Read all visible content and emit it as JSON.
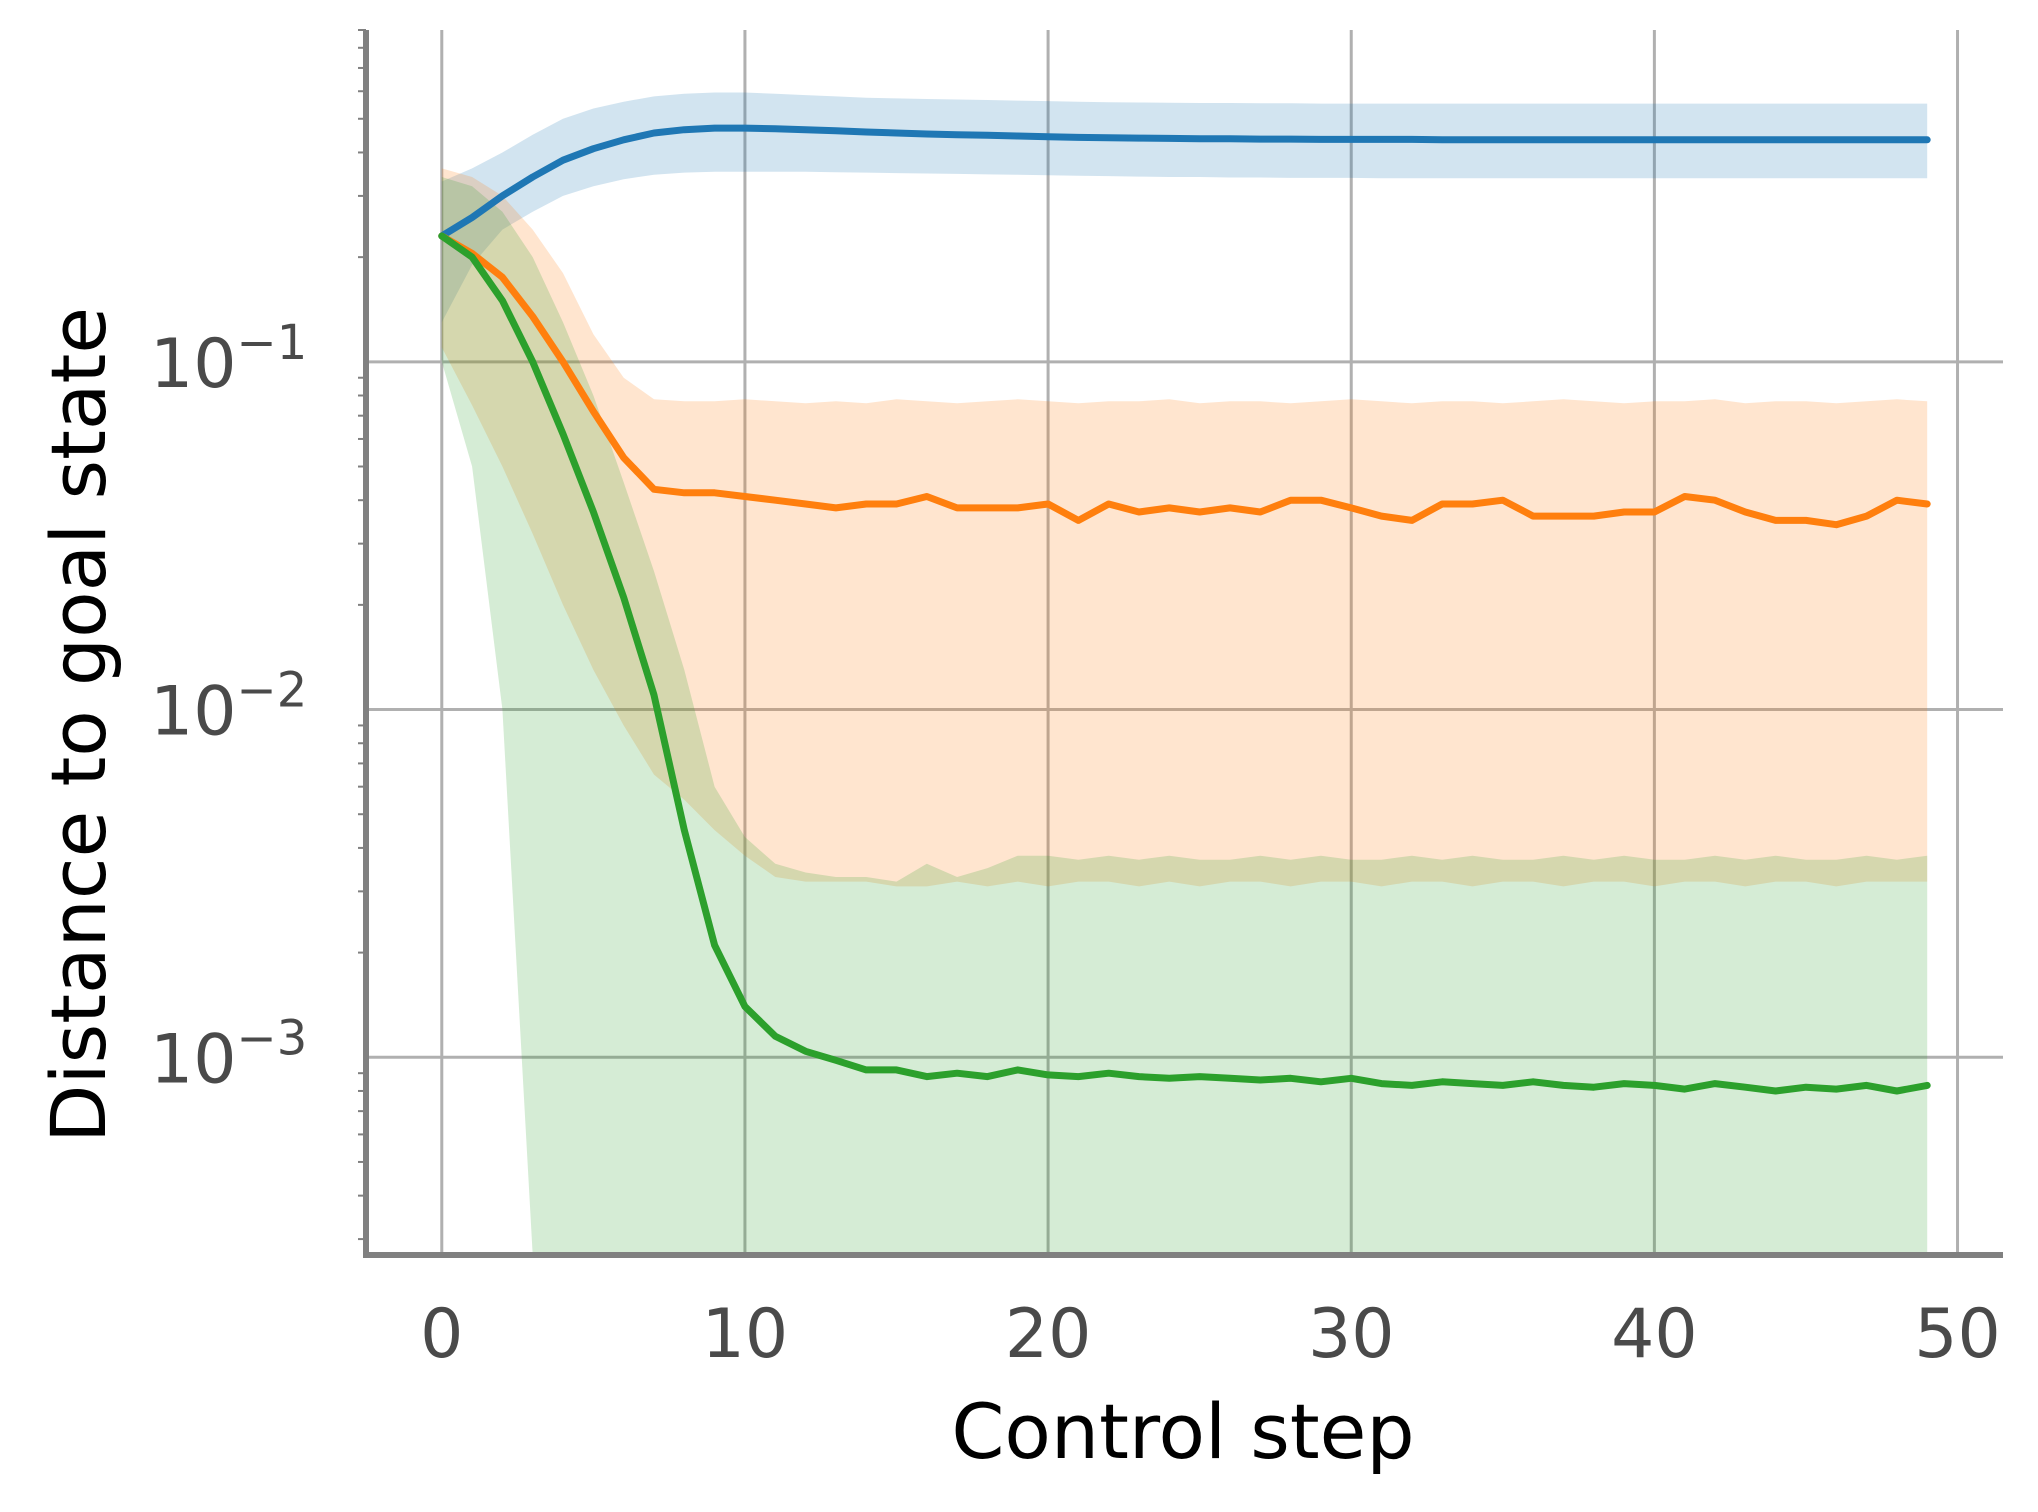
{
  "chart_data": {
    "type": "line",
    "title": "",
    "xlabel": "Control step",
    "ylabel": "Distance to goal state",
    "xlim": [
      -2.5,
      51.5
    ],
    "ylim": [
      0.00027,
      0.9
    ],
    "yscale": "log",
    "grid": true,
    "legend": "none",
    "x_ticks": [
      0,
      10,
      20,
      30,
      40,
      50
    ],
    "x_tick_labels": [
      "0",
      "10",
      "20",
      "30",
      "40",
      "50"
    ],
    "y_ticks": [
      0.1,
      0.01,
      0.001
    ],
    "y_tick_labels": [
      {
        "base": "10",
        "exp": "−1"
      },
      {
        "base": "10",
        "exp": "−2"
      },
      {
        "base": "10",
        "exp": "−3"
      }
    ],
    "colors": {
      "series1": "#1f77b4",
      "series2": "#ff7f0e",
      "series3": "#2ca02c",
      "grid": "#b0b0b0",
      "axis": "#808080"
    },
    "series": [
      {
        "key": "blue",
        "x": [
          0,
          1,
          2,
          3,
          4,
          5,
          6,
          7,
          8,
          9,
          10,
          11,
          12,
          13,
          14,
          15,
          16,
          17,
          18,
          19,
          20,
          21,
          22,
          23,
          24,
          25,
          26,
          27,
          28,
          29,
          30,
          31,
          32,
          33,
          34,
          35,
          36,
          37,
          38,
          39,
          40,
          41,
          42,
          43,
          44,
          45,
          46,
          47,
          48,
          49
        ],
        "values": [
          0.23,
          0.26,
          0.3,
          0.34,
          0.38,
          0.41,
          0.435,
          0.455,
          0.465,
          0.47,
          0.47,
          0.468,
          0.465,
          0.462,
          0.458,
          0.455,
          0.452,
          0.45,
          0.448,
          0.446,
          0.444,
          0.442,
          0.441,
          0.44,
          0.439,
          0.438,
          0.438,
          0.437,
          0.437,
          0.436,
          0.436,
          0.436,
          0.436,
          0.435,
          0.435,
          0.435,
          0.435,
          0.435,
          0.435,
          0.435,
          0.435,
          0.435,
          0.435,
          0.435,
          0.435,
          0.435,
          0.435,
          0.435,
          0.435,
          0.435
        ],
        "lower": [
          0.13,
          0.19,
          0.24,
          0.27,
          0.3,
          0.32,
          0.335,
          0.345,
          0.35,
          0.352,
          0.352,
          0.352,
          0.352,
          0.351,
          0.35,
          0.349,
          0.348,
          0.347,
          0.346,
          0.345,
          0.344,
          0.343,
          0.342,
          0.341,
          0.34,
          0.34,
          0.339,
          0.339,
          0.338,
          0.338,
          0.338,
          0.337,
          0.337,
          0.337,
          0.337,
          0.337,
          0.337,
          0.337,
          0.337,
          0.337,
          0.337,
          0.337,
          0.337,
          0.337,
          0.337,
          0.337,
          0.337,
          0.337,
          0.337,
          0.337
        ],
        "upper": [
          0.33,
          0.36,
          0.4,
          0.45,
          0.5,
          0.535,
          0.56,
          0.58,
          0.59,
          0.595,
          0.595,
          0.59,
          0.585,
          0.58,
          0.575,
          0.572,
          0.57,
          0.568,
          0.566,
          0.564,
          0.562,
          0.56,
          0.558,
          0.557,
          0.556,
          0.555,
          0.555,
          0.554,
          0.554,
          0.553,
          0.553,
          0.553,
          0.553,
          0.553,
          0.553,
          0.553,
          0.553,
          0.553,
          0.553,
          0.553,
          0.553,
          0.553,
          0.553,
          0.553,
          0.553,
          0.553,
          0.553,
          0.553,
          0.553,
          0.553
        ]
      },
      {
        "key": "orange",
        "x": [
          0,
          1,
          2,
          3,
          4,
          5,
          6,
          7,
          8,
          9,
          10,
          11,
          12,
          13,
          14,
          15,
          16,
          17,
          18,
          19,
          20,
          21,
          22,
          23,
          24,
          25,
          26,
          27,
          28,
          29,
          30,
          31,
          32,
          33,
          34,
          35,
          36,
          37,
          38,
          39,
          40,
          41,
          42,
          43,
          44,
          45,
          46,
          47,
          48,
          49
        ],
        "values": [
          0.23,
          0.205,
          0.175,
          0.135,
          0.1,
          0.072,
          0.053,
          0.043,
          0.042,
          0.042,
          0.041,
          0.04,
          0.039,
          0.038,
          0.039,
          0.039,
          0.041,
          0.038,
          0.038,
          0.038,
          0.039,
          0.035,
          0.039,
          0.037,
          0.038,
          0.037,
          0.038,
          0.037,
          0.04,
          0.04,
          0.038,
          0.036,
          0.035,
          0.039,
          0.039,
          0.04,
          0.036,
          0.036,
          0.036,
          0.037,
          0.037,
          0.041,
          0.04,
          0.037,
          0.035,
          0.035,
          0.034,
          0.036,
          0.04,
          0.039
        ],
        "lower": [
          0.11,
          0.075,
          0.05,
          0.032,
          0.02,
          0.013,
          0.009,
          0.0065,
          0.0055,
          0.0045,
          0.0038,
          0.0033,
          0.0032,
          0.0032,
          0.0032,
          0.0031,
          0.0031,
          0.0032,
          0.0031,
          0.0032,
          0.0031,
          0.0032,
          0.0032,
          0.0031,
          0.0032,
          0.0031,
          0.0032,
          0.0032,
          0.0031,
          0.0032,
          0.0032,
          0.0031,
          0.0032,
          0.0032,
          0.0031,
          0.0032,
          0.0032,
          0.0031,
          0.0032,
          0.0032,
          0.0031,
          0.0032,
          0.0032,
          0.0031,
          0.0032,
          0.0032,
          0.0031,
          0.0032,
          0.0032,
          0.0032
        ],
        "upper": [
          0.36,
          0.34,
          0.3,
          0.24,
          0.18,
          0.12,
          0.09,
          0.078,
          0.077,
          0.077,
          0.078,
          0.077,
          0.076,
          0.077,
          0.076,
          0.078,
          0.077,
          0.076,
          0.077,
          0.078,
          0.077,
          0.076,
          0.077,
          0.077,
          0.078,
          0.076,
          0.077,
          0.077,
          0.076,
          0.077,
          0.078,
          0.077,
          0.076,
          0.077,
          0.077,
          0.076,
          0.077,
          0.078,
          0.077,
          0.076,
          0.077,
          0.077,
          0.078,
          0.076,
          0.077,
          0.077,
          0.076,
          0.077,
          0.078,
          0.077
        ]
      },
      {
        "key": "green",
        "x": [
          0,
          1,
          2,
          3,
          4,
          5,
          6,
          7,
          8,
          9,
          10,
          11,
          12,
          13,
          14,
          15,
          16,
          17,
          18,
          19,
          20,
          21,
          22,
          23,
          24,
          25,
          26,
          27,
          28,
          29,
          30,
          31,
          32,
          33,
          34,
          35,
          36,
          37,
          38,
          39,
          40,
          41,
          42,
          43,
          44,
          45,
          46,
          47,
          48,
          49
        ],
        "values": [
          0.23,
          0.2,
          0.15,
          0.1,
          0.062,
          0.037,
          0.021,
          0.011,
          0.0045,
          0.0021,
          0.0014,
          0.00115,
          0.00104,
          0.00098,
          0.00092,
          0.00092,
          0.00088,
          0.0009,
          0.00088,
          0.00092,
          0.00089,
          0.00088,
          0.0009,
          0.00088,
          0.00087,
          0.00088,
          0.00087,
          0.00086,
          0.00087,
          0.00085,
          0.00087,
          0.00084,
          0.00083,
          0.00085,
          0.00084,
          0.00083,
          0.00085,
          0.00083,
          0.00082,
          0.00084,
          0.00083,
          0.00081,
          0.00084,
          0.00082,
          0.0008,
          0.00082,
          0.00081,
          0.00083,
          0.0008,
          0.00083
        ],
        "lower": [
          0.1,
          0.05,
          0.01,
          0.0001,
          0.0001,
          0.0001,
          0.0001,
          0.0001,
          0.0001,
          0.0001,
          0.0001,
          0.0001,
          0.0001,
          0.0001,
          0.0001,
          0.0001,
          0.0001,
          0.0001,
          0.0001,
          0.0001,
          0.0001,
          0.0001,
          0.0001,
          0.0001,
          0.0001,
          0.0001,
          0.0001,
          0.0001,
          0.0001,
          0.0001,
          0.0001,
          0.0001,
          0.0001,
          0.0001,
          0.0001,
          0.0001,
          0.0001,
          0.0001,
          0.0001,
          0.0001,
          0.0001,
          0.0001,
          0.0001,
          0.0001,
          0.0001,
          0.0001,
          0.0001,
          0.0001,
          0.0001,
          0.0001
        ],
        "upper": [
          0.34,
          0.32,
          0.27,
          0.2,
          0.13,
          0.08,
          0.045,
          0.025,
          0.013,
          0.006,
          0.0043,
          0.0036,
          0.0034,
          0.0033,
          0.0033,
          0.0032,
          0.0036,
          0.0033,
          0.0035,
          0.0038,
          0.0038,
          0.0037,
          0.0038,
          0.0037,
          0.0038,
          0.0037,
          0.0037,
          0.0038,
          0.0037,
          0.0038,
          0.0037,
          0.0037,
          0.0038,
          0.0037,
          0.0038,
          0.0037,
          0.0037,
          0.0038,
          0.0037,
          0.0038,
          0.0037,
          0.0037,
          0.0038,
          0.0037,
          0.0038,
          0.0037,
          0.0037,
          0.0038,
          0.0037,
          0.0038
        ]
      }
    ]
  }
}
